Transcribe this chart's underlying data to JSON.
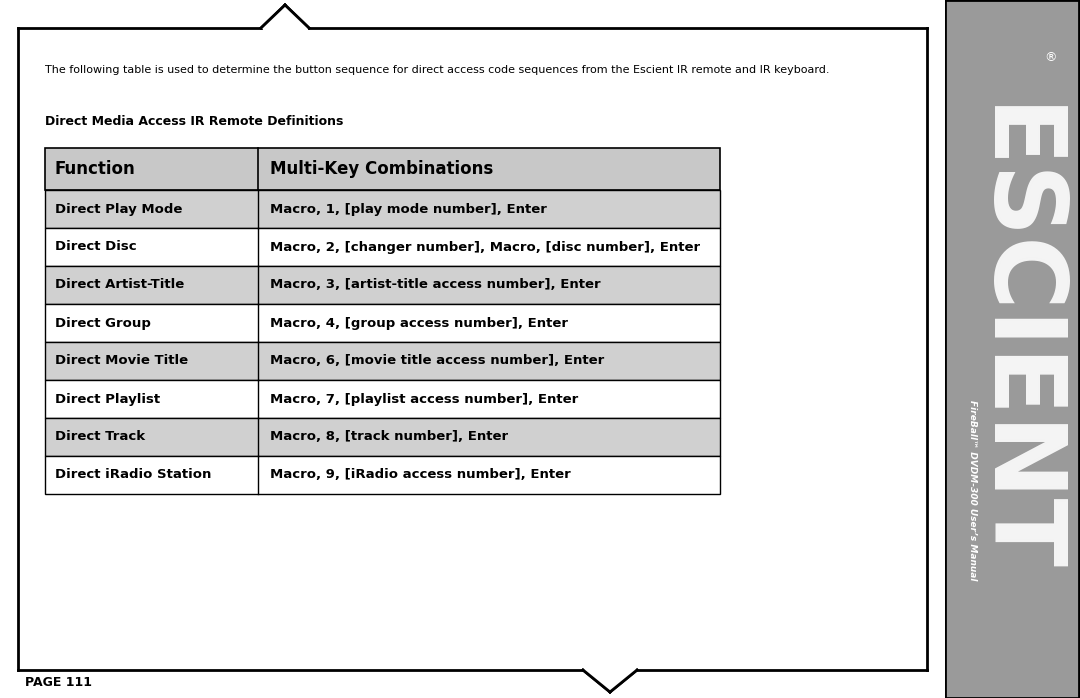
{
  "intro_text": "The following table is used to determine the button sequence for direct access code sequences from the Escient IR remote and IR keyboard.",
  "section_title": "Direct Media Access IR Remote Definitions",
  "col1_header": "Function",
  "col2_header": "Multi-Key Combinations",
  "rows": [
    {
      "func": "Direct Play Mode",
      "combo": "Macro, 1, [play mode number], Enter",
      "shaded": true
    },
    {
      "func": "Direct Disc",
      "combo": "Macro, 2, [changer number], Macro, [disc number], Enter",
      "shaded": false
    },
    {
      "func": "Direct Artist-Title",
      "combo": "Macro, 3, [artist-title access number], Enter",
      "shaded": true
    },
    {
      "func": "Direct Group",
      "combo": "Macro, 4, [group access number], Enter",
      "shaded": false
    },
    {
      "func": "Direct Movie Title",
      "combo": "Macro, 6, [movie title access number], Enter",
      "shaded": true
    },
    {
      "func": "Direct Playlist",
      "combo": "Macro, 7, [playlist access number], Enter",
      "shaded": false
    },
    {
      "func": "Direct Track",
      "combo": "Macro, 8, [track number], Enter",
      "shaded": true
    },
    {
      "func": "Direct iRadio Station",
      "combo": "Macro, 9, [iRadio access number], Enter",
      "shaded": false
    }
  ],
  "page_number": "PAGE 111",
  "sidebar_text": "FireBall™ DVDM-300 User’s Manual",
  "sidebar_brand": "ESCIENT",
  "sidebar_color": "#9a9a9a",
  "header_bg": "#c8c8c8",
  "shaded_bg": "#d0d0d0",
  "white_bg": "#ffffff",
  "border_color": "#000000",
  "text_color": "#000000",
  "page_bg": "#ffffff",
  "outer_bg": "#ffffff",
  "fig_width": 10.8,
  "fig_height": 6.98,
  "dpi": 100
}
